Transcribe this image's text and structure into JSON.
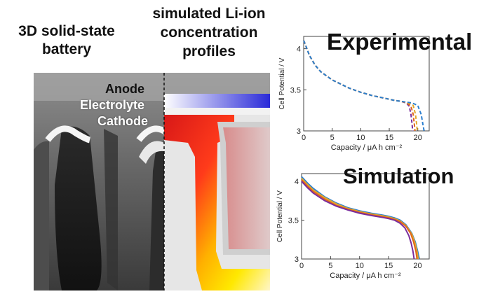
{
  "left_panel": {
    "title_left": "3D solid-state battery",
    "title_right": "simulated Li-ion concentration profiles",
    "layer_labels": [
      "Anode",
      "Electrolyte",
      "Cathode"
    ]
  },
  "colors": {
    "curve_purple": "#7a2d9c",
    "curve_yellow": "#e3a92a",
    "curve_orange": "#e0651c",
    "curve_blue": "#2b7fd0",
    "anode_blue": "#2a2ad8",
    "cathode_red": "#e41a1a"
  },
  "chart_data": [
    {
      "type": "line",
      "title": "Experimental",
      "xlabel": "Capacity / μA h cm⁻²",
      "ylabel": "Cell Potential / V",
      "xlim": [
        0,
        22
      ],
      "ylim": [
        3,
        4.15
      ],
      "x_ticks": [
        "0",
        "5",
        "10",
        "15",
        "20"
      ],
      "y_ticks": [
        "3",
        "3.5",
        "4"
      ],
      "line_style": "dashed",
      "series": [
        {
          "color": "#7a2d9c",
          "x": [
            0,
            0.3,
            1,
            2,
            3,
            5,
            8,
            10,
            12,
            14,
            15,
            16,
            17,
            18,
            18.5,
            18.8,
            19.0,
            19.1
          ],
          "y": [
            4.1,
            4.05,
            3.92,
            3.8,
            3.72,
            3.62,
            3.52,
            3.47,
            3.43,
            3.4,
            3.385,
            3.37,
            3.36,
            3.34,
            3.3,
            3.2,
            3.08,
            3.0
          ]
        },
        {
          "color": "#e0651c",
          "x": [
            0,
            0.3,
            1,
            2,
            3,
            5,
            8,
            10,
            12,
            14,
            15,
            16,
            17,
            18,
            18.8,
            19.2,
            19.4,
            19.5
          ],
          "y": [
            4.1,
            4.05,
            3.92,
            3.8,
            3.72,
            3.62,
            3.52,
            3.47,
            3.43,
            3.4,
            3.385,
            3.37,
            3.36,
            3.345,
            3.3,
            3.2,
            3.08,
            3.0
          ]
        },
        {
          "color": "#e3a92a",
          "x": [
            0,
            0.3,
            1,
            2,
            3,
            5,
            8,
            10,
            12,
            14,
            15,
            16,
            17,
            18,
            19.2,
            19.6,
            19.8,
            19.9
          ],
          "y": [
            4.1,
            4.05,
            3.92,
            3.8,
            3.72,
            3.62,
            3.52,
            3.47,
            3.43,
            3.4,
            3.385,
            3.37,
            3.36,
            3.35,
            3.31,
            3.2,
            3.08,
            3.0
          ]
        },
        {
          "color": "#2b7fd0",
          "x": [
            0,
            0.3,
            1,
            2,
            3,
            5,
            8,
            10,
            12,
            14,
            15,
            16,
            17,
            18,
            19,
            20,
            20.6,
            20.9,
            21.1
          ],
          "y": [
            4.1,
            4.05,
            3.92,
            3.8,
            3.72,
            3.62,
            3.52,
            3.47,
            3.43,
            3.4,
            3.385,
            3.37,
            3.36,
            3.35,
            3.34,
            3.31,
            3.2,
            3.08,
            3.0
          ]
        }
      ]
    },
    {
      "type": "line",
      "title": "Simulation",
      "xlabel": "Capacity / μA h cm⁻²",
      "ylabel": "Cell Potential / V",
      "xlim": [
        0,
        22
      ],
      "ylim": [
        3,
        4.1
      ],
      "x_ticks": [
        "0",
        "5",
        "10",
        "15",
        "20"
      ],
      "y_ticks": [
        "3",
        "3.5",
        "4"
      ],
      "line_style": "solid",
      "series": [
        {
          "color": "#2b7fd0",
          "x": [
            0,
            1,
            2,
            4,
            6,
            8,
            10,
            12,
            14,
            15,
            16,
            17,
            18,
            19,
            19.6,
            20.0,
            20.3
          ],
          "y": [
            4.06,
            3.98,
            3.91,
            3.8,
            3.72,
            3.66,
            3.62,
            3.59,
            3.565,
            3.55,
            3.53,
            3.5,
            3.44,
            3.33,
            3.22,
            3.1,
            3.0
          ]
        },
        {
          "color": "#e3a92a",
          "x": [
            0,
            1,
            2,
            4,
            6,
            8,
            10,
            12,
            14,
            15,
            16,
            17,
            18,
            19,
            19.5,
            19.9,
            20.1
          ],
          "y": [
            4.04,
            3.96,
            3.89,
            3.79,
            3.71,
            3.65,
            3.61,
            3.58,
            3.555,
            3.54,
            3.52,
            3.49,
            3.43,
            3.32,
            3.22,
            3.1,
            3.0
          ]
        },
        {
          "color": "#e0651c",
          "x": [
            0,
            1,
            2,
            4,
            6,
            8,
            10,
            12,
            14,
            15,
            16,
            17,
            18,
            18.8,
            19.3,
            19.7,
            19.9
          ],
          "y": [
            4.02,
            3.94,
            3.87,
            3.77,
            3.69,
            3.64,
            3.6,
            3.57,
            3.545,
            3.53,
            3.51,
            3.48,
            3.42,
            3.33,
            3.22,
            3.1,
            3.0
          ]
        },
        {
          "color": "#7a2d9c",
          "x": [
            0,
            1,
            2,
            4,
            6,
            8,
            10,
            12,
            14,
            15,
            16,
            17,
            17.8,
            18.5,
            18.9,
            19.2,
            19.4
          ],
          "y": [
            4.0,
            3.92,
            3.85,
            3.75,
            3.68,
            3.63,
            3.59,
            3.56,
            3.535,
            3.52,
            3.5,
            3.46,
            3.4,
            3.3,
            3.2,
            3.1,
            3.0
          ]
        }
      ]
    }
  ]
}
